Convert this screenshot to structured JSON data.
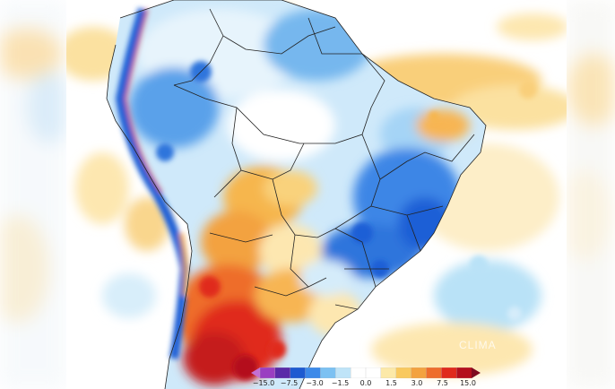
{
  "map": {
    "region": "South America",
    "watermark": "CLIMA",
    "palette": {
      "deep_blue": "#1f5fd6",
      "blue": "#3f8ef0",
      "light_blue": "#8fd0f5",
      "pale_blue": "#d2ecfb",
      "yellow": "#fbe6a6",
      "orange": "#f6b64e",
      "dark_orange": "#ef7e2a",
      "red": "#e02a1c",
      "dark_red": "#a8101a"
    }
  },
  "colorbar": {
    "labels": [
      "−15.0",
      "−7.5",
      "−3.0",
      "−1.5",
      "0.0",
      "1.5",
      "3.0",
      "7.5",
      "15.0"
    ],
    "colors": [
      "#c46fd3",
      "#9a3ec1",
      "#5a2aa8",
      "#1d5bd1",
      "#3d8ae9",
      "#7cc1f2",
      "#bfe4f8",
      "#ffffff",
      "#ffffff",
      "#fce9a8",
      "#f9c95f",
      "#f3a240",
      "#ee6d2c",
      "#e02a1c",
      "#b40f1c",
      "#7e0a1f"
    ]
  }
}
